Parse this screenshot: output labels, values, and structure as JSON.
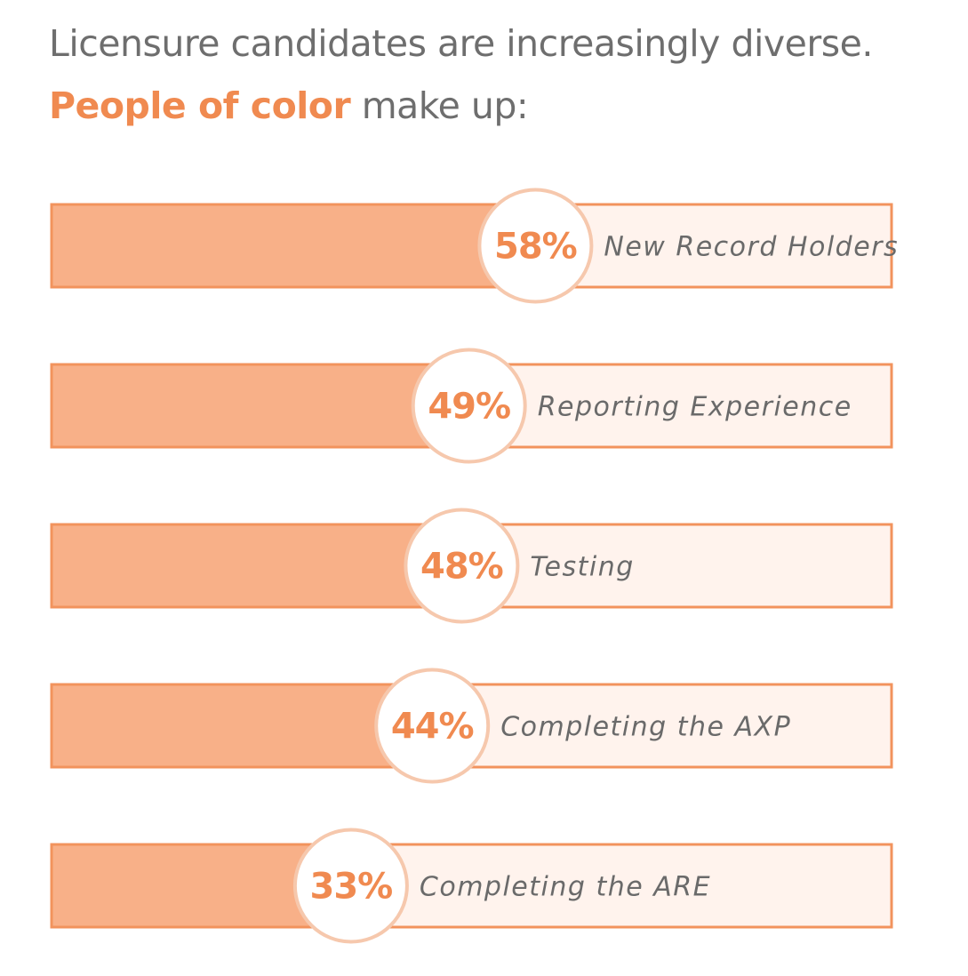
{
  "header": {
    "line1": "Licensure candidates are increasingly diverse.",
    "accent": "People of color",
    "line2_rest": " make up:"
  },
  "colors": {
    "fill": "#f8b088",
    "border": "#f2935d",
    "track": "#fff3ed",
    "ring": "#f6c8ad",
    "accent": "#f08a50",
    "label": "#6a6a6a"
  },
  "chart_data": {
    "type": "bar",
    "orientation": "horizontal",
    "categories": [
      "New Record Holders",
      "Reporting Experience",
      "Testing",
      "Completing the AXP",
      "Completing the ARE"
    ],
    "values": [
      58,
      49,
      48,
      44,
      33
    ],
    "value_labels": [
      "58%",
      "49%",
      "48%",
      "44%",
      "33%"
    ],
    "xlim": [
      0,
      100
    ],
    "unit": "%",
    "title": "",
    "xlabel": "",
    "ylabel": ""
  }
}
